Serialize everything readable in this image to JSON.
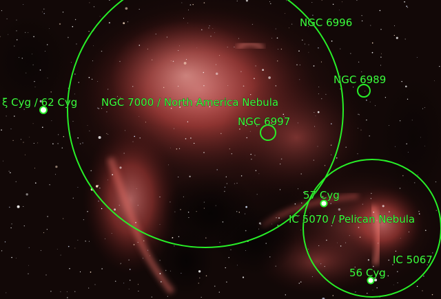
{
  "image": {
    "annotation_color": "#28f028",
    "label_color": "#3dff3d",
    "background_color": "#0a0606",
    "nebula_color": "#c23a3a"
  },
  "labels": {
    "ngc6996": "NGC 6996",
    "ngc6989": "NGC 6989",
    "ngc7000": "NGC 7000 / North America Nebula",
    "ngc6997": "NGC 6997",
    "xi_cyg": "ξ Cyg / 62 Cyg",
    "cyg57": "57 Cyg",
    "ic5070": "IC 5070 / Pelican Nebula",
    "ic5067": "IC 5067",
    "cyg56": "56 Cyg"
  }
}
